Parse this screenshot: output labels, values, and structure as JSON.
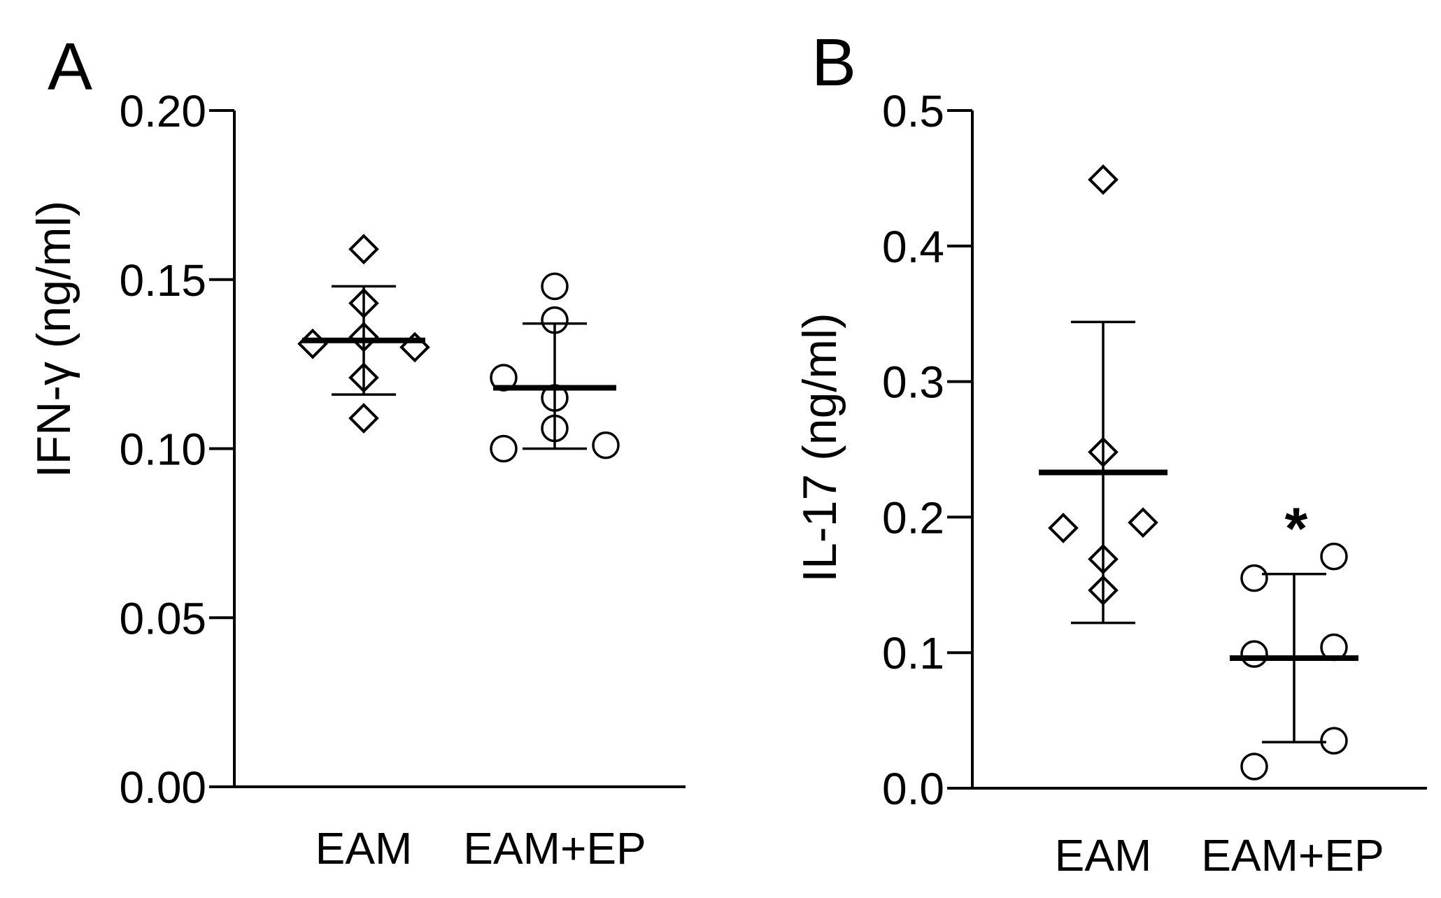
{
  "chart_data": [
    {
      "type": "scatter",
      "panel": "A",
      "ylabel": "IFN-γ (ng/ml)",
      "ylim": [
        0,
        0.2
      ],
      "yticks": [
        "0.00",
        "0.05",
        "0.10",
        "0.15",
        "0.20"
      ],
      "categories": [
        "EAM",
        "EAM+EP"
      ],
      "series": [
        {
          "marker": "diamond",
          "points": [
            {
              "cat": 0,
              "jitter": 0,
              "y": 0.159
            },
            {
              "cat": 0,
              "jitter": 0,
              "y": 0.143
            },
            {
              "cat": 0,
              "jitter": -1,
              "y": 0.131
            },
            {
              "cat": 0,
              "jitter": 0,
              "y": 0.133
            },
            {
              "cat": 0,
              "jitter": 1,
              "y": 0.13
            },
            {
              "cat": 0,
              "jitter": 0,
              "y": 0.121
            },
            {
              "cat": 0,
              "jitter": 0,
              "y": 0.109
            }
          ],
          "mean": 0.132,
          "upper": 0.148,
          "lower": 0.116
        },
        {
          "marker": "circle",
          "points": [
            {
              "cat": 1,
              "jitter": 0,
              "y": 0.148
            },
            {
              "cat": 1,
              "jitter": 0,
              "y": 0.138
            },
            {
              "cat": 1,
              "jitter": -1,
              "y": 0.121
            },
            {
              "cat": 1,
              "jitter": 0,
              "y": 0.115
            },
            {
              "cat": 1,
              "jitter": 0,
              "y": 0.106
            },
            {
              "cat": 1,
              "jitter": -1,
              "y": 0.1
            },
            {
              "cat": 1,
              "jitter": 1,
              "y": 0.101
            }
          ],
          "mean": 0.118,
          "upper": 0.137,
          "lower": 0.1
        }
      ],
      "annotations": []
    },
    {
      "type": "scatter",
      "panel": "B",
      "ylabel": "IL-17 (ng/ml)",
      "ylim": [
        0,
        0.5
      ],
      "yticks": [
        "0.0",
        "0.1",
        "0.2",
        "0.3",
        "0.4",
        "0.5"
      ],
      "categories": [
        "EAM",
        "EAM+EP"
      ],
      "series": [
        {
          "marker": "diamond",
          "points": [
            {
              "cat": 0,
              "jitter": 0,
              "y": 0.449
            },
            {
              "cat": 0,
              "jitter": 0,
              "y": 0.248
            },
            {
              "cat": 0,
              "jitter": -1,
              "y": 0.192
            },
            {
              "cat": 0,
              "jitter": 1,
              "y": 0.196
            },
            {
              "cat": 0,
              "jitter": 0,
              "y": 0.169
            },
            {
              "cat": 0,
              "jitter": 0,
              "y": 0.146
            }
          ],
          "mean": 0.233,
          "upper": 0.344,
          "lower": 0.122
        },
        {
          "marker": "circle",
          "points": [
            {
              "cat": 1,
              "jitter": 1,
              "y": 0.171
            },
            {
              "cat": 1,
              "jitter": -1,
              "y": 0.155
            },
            {
              "cat": 1,
              "jitter": 1,
              "y": 0.104
            },
            {
              "cat": 1,
              "jitter": -1,
              "y": 0.099
            },
            {
              "cat": 1,
              "jitter": 1,
              "y": 0.035
            },
            {
              "cat": 1,
              "jitter": -1,
              "y": 0.016
            }
          ],
          "mean": 0.096,
          "upper": 0.158,
          "lower": 0.034
        }
      ],
      "annotations": [
        {
          "text": "*",
          "cat": 1,
          "y": 0.205
        }
      ]
    }
  ]
}
